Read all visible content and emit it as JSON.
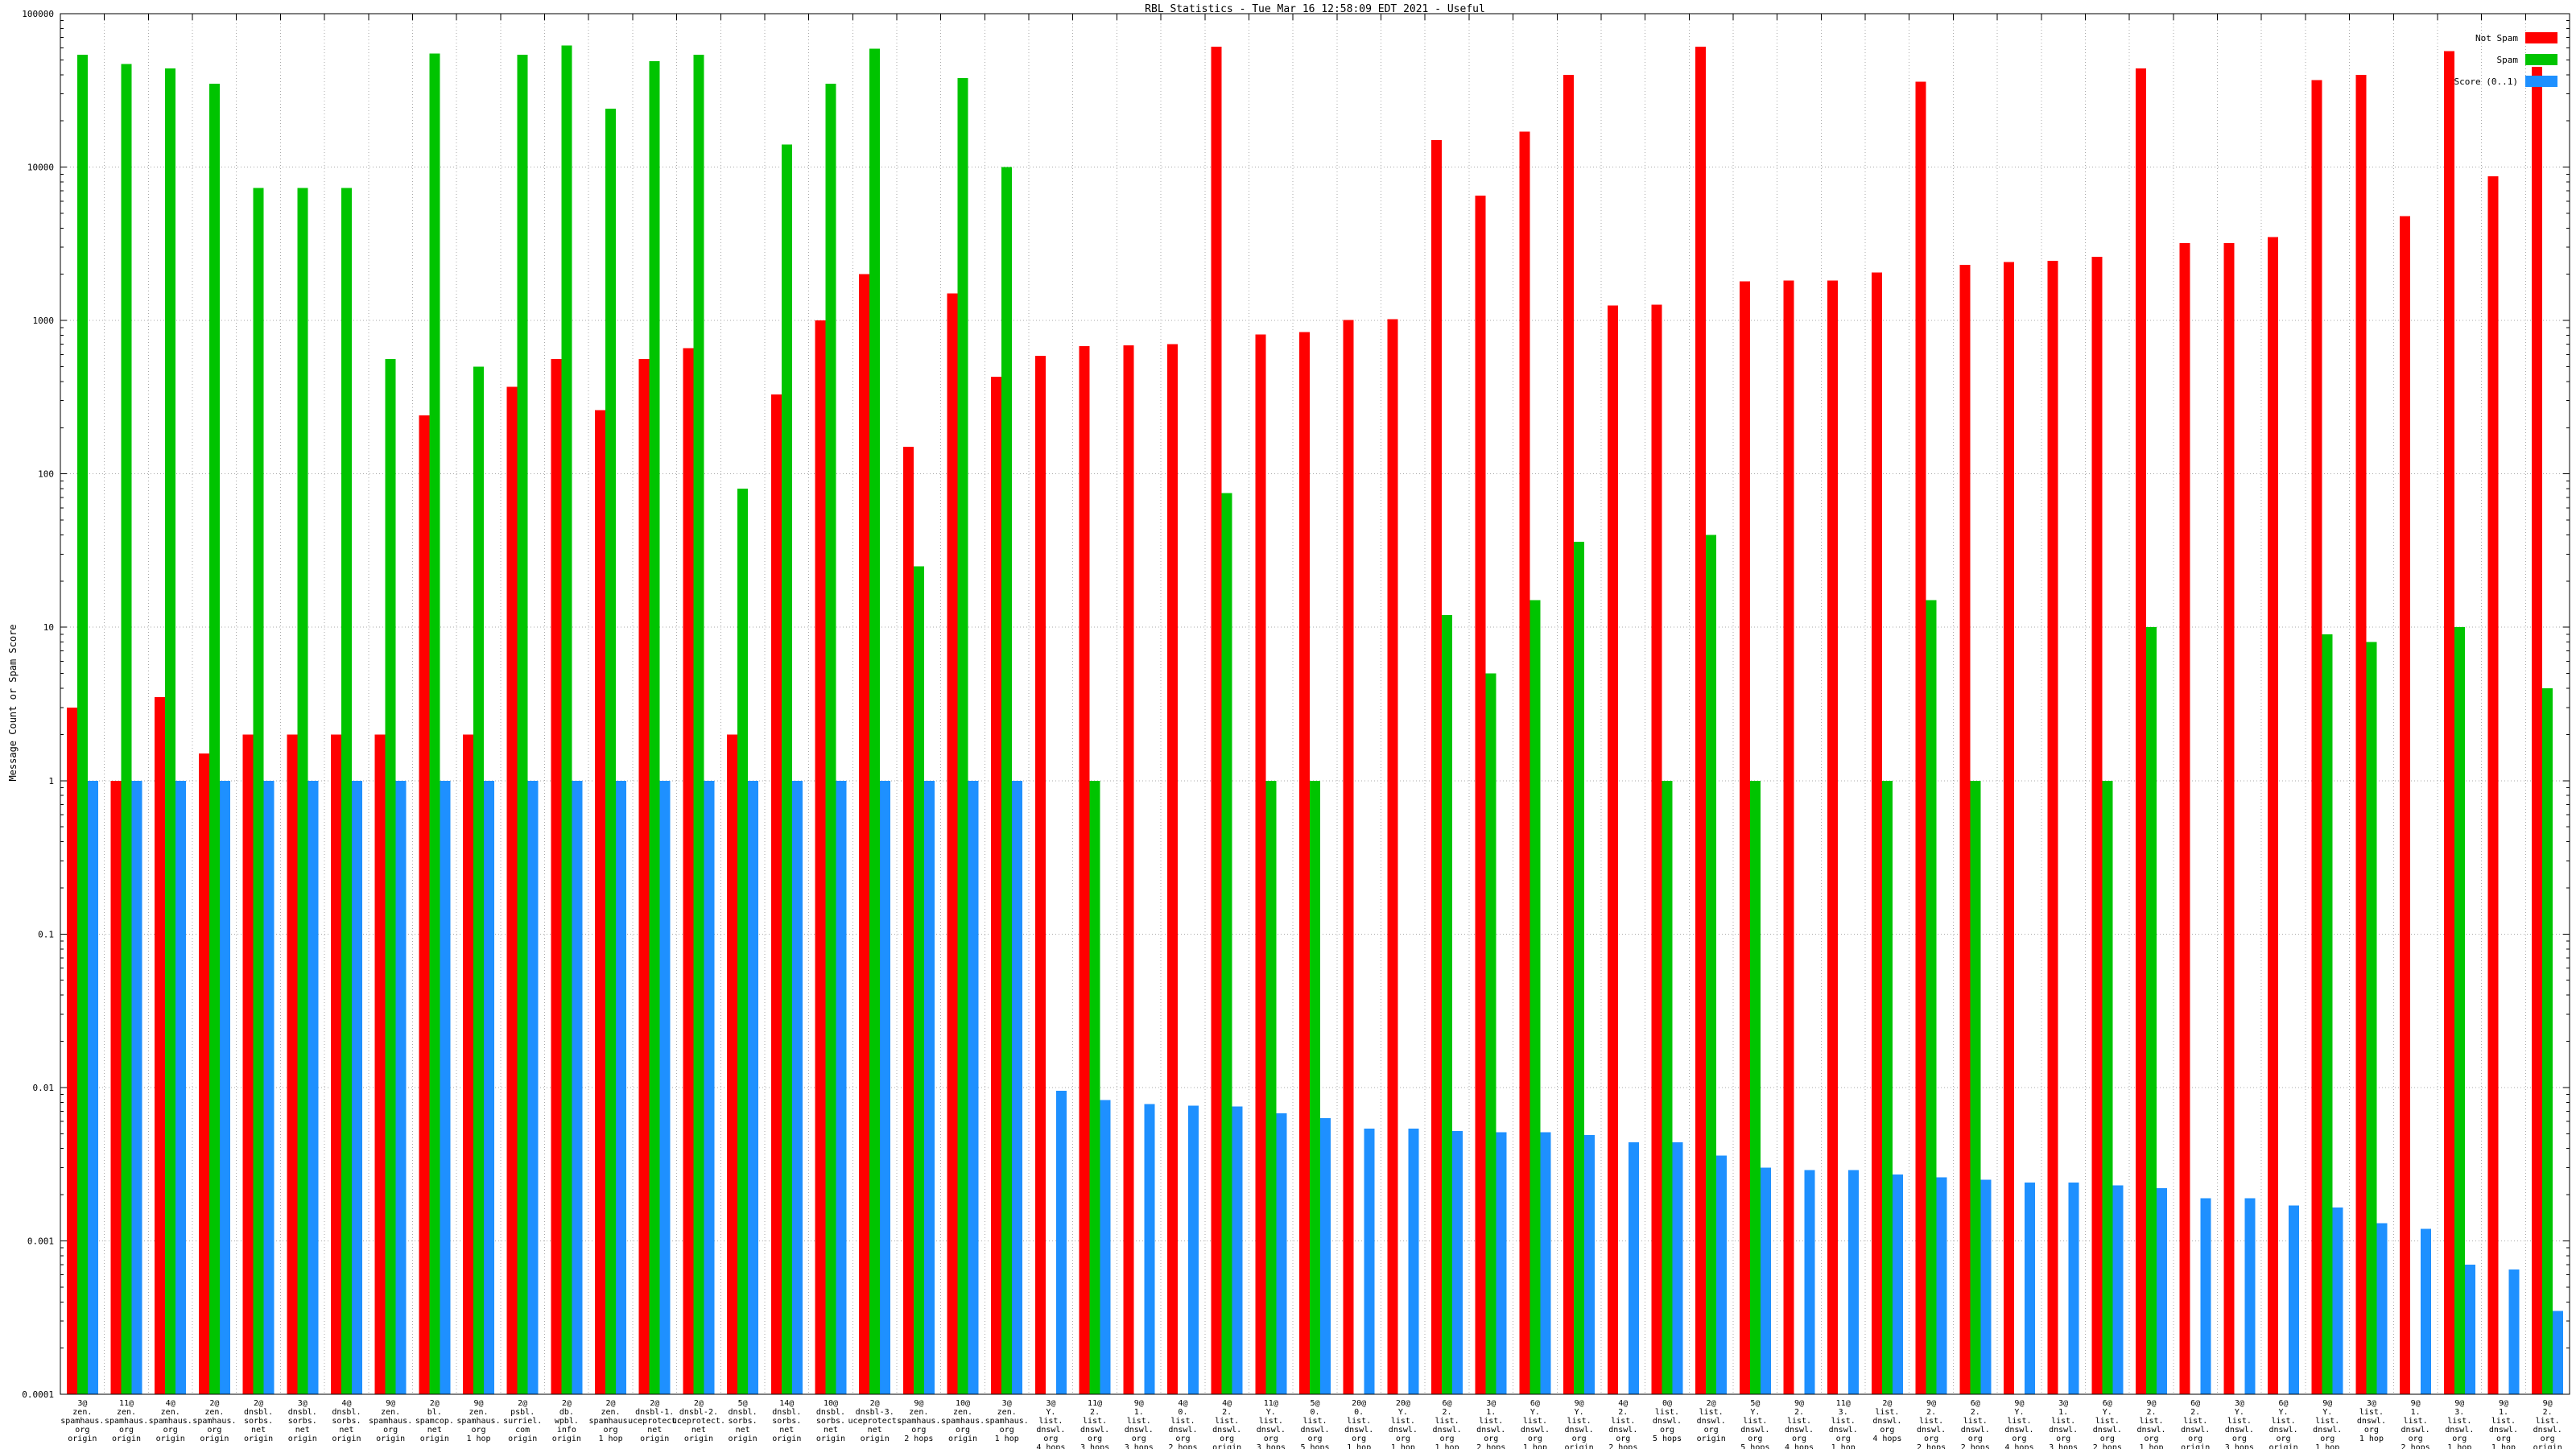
{
  "page_title": "RBL Statistics - Tue Mar 16 12:58:09 EDT 2021 - Useful",
  "chart_data": {
    "type": "bar",
    "title": "RBL Statistics - Tue Mar 16 12:58:09 EDT 2021 - Useful",
    "xlabel": "",
    "ylabel": "Message Count or Spam Score",
    "y_scale": "log",
    "ylim": [
      0.0001,
      100000
    ],
    "y_ticks": [
      "100000",
      "10000",
      "1000",
      "100",
      "10",
      "1",
      "0.1",
      "0.01",
      "0.001",
      "0.0001"
    ],
    "grid": true,
    "legend_position": "top-right",
    "colors": {
      "not_spam": "#ff0000",
      "spam": "#00c400",
      "score": "#1e90ff",
      "grid": "#a8a8a8",
      "axis": "#000000",
      "background": "#ffffff"
    },
    "categories": [
      [
        "3@",
        "zen.",
        "spamhaus.",
        "org",
        "origin"
      ],
      [
        "11@",
        "zen.",
        "spamhaus.",
        "org",
        "origin"
      ],
      [
        "4@",
        "zen.",
        "spamhaus.",
        "org",
        "origin"
      ],
      [
        "2@",
        "zen.",
        "spamhaus.",
        "org",
        "origin"
      ],
      [
        "2@",
        "dnsbl.",
        "sorbs.",
        "net",
        "origin"
      ],
      [
        "3@",
        "dnsbl.",
        "sorbs.",
        "net",
        "origin"
      ],
      [
        "4@",
        "dnsbl.",
        "sorbs.",
        "net",
        "origin"
      ],
      [
        "9@",
        "zen.",
        "spamhaus.",
        "org",
        "origin"
      ],
      [
        "2@",
        "bl.",
        "spamcop.",
        "net",
        "origin"
      ],
      [
        "9@",
        "zen.",
        "spamhaus.",
        "org",
        "1 hop"
      ],
      [
        "2@",
        "psbl.",
        "surriel.",
        "com",
        "origin"
      ],
      [
        "2@",
        "db.",
        "wpbl.",
        "info",
        "origin"
      ],
      [
        "2@",
        "zen.",
        "spamhaus.",
        "org",
        "1 hop"
      ],
      [
        "2@",
        "dnsbl-1.",
        "uceprotect.",
        "net",
        "origin"
      ],
      [
        "2@",
        "dnsbl-2.",
        "uceprotect.",
        "net",
        "origin"
      ],
      [
        "5@",
        "dnsbl.",
        "sorbs.",
        "net",
        "origin"
      ],
      [
        "14@",
        "dnsbl.",
        "sorbs.",
        "net",
        "origin"
      ],
      [
        "10@",
        "dnsbl.",
        "sorbs.",
        "net",
        "origin"
      ],
      [
        "2@",
        "dnsbl-3.",
        "uceprotect.",
        "net",
        "origin"
      ],
      [
        "9@",
        "zen.",
        "spamhaus.",
        "org",
        "2 hops"
      ],
      [
        "10@",
        "zen.",
        "spamhaus.",
        "org",
        "origin"
      ],
      [
        "3@",
        "zen.",
        "spamhaus.",
        "org",
        "1 hop"
      ],
      [
        "3@",
        "Y.",
        "list.",
        "dnswl.",
        "org",
        "4 hops"
      ],
      [
        "11@",
        "2.",
        "list.",
        "dnswl.",
        "org",
        "3 hops"
      ],
      [
        "9@",
        "1.",
        "list.",
        "dnswl.",
        "org",
        "3 hops"
      ],
      [
        "4@",
        "0.",
        "list.",
        "dnswl.",
        "org",
        "2 hops"
      ],
      [
        "4@",
        "2.",
        "list.",
        "dnswl.",
        "org",
        "origin"
      ],
      [
        "11@",
        "Y.",
        "list.",
        "dnswl.",
        "org",
        "3 hops"
      ],
      [
        "5@",
        "0.",
        "list.",
        "dnswl.",
        "org",
        "5 hops"
      ],
      [
        "20@",
        "0.",
        "list.",
        "dnswl.",
        "org",
        "1 hop"
      ],
      [
        "20@",
        "Y.",
        "list.",
        "dnswl.",
        "org",
        "1 hop"
      ],
      [
        "6@",
        "2.",
        "list.",
        "dnswl.",
        "org",
        "1 hop"
      ],
      [
        "3@",
        "1.",
        "list.",
        "dnswl.",
        "org",
        "2 hops"
      ],
      [
        "6@",
        "Y.",
        "list.",
        "dnswl.",
        "org",
        "1 hop"
      ],
      [
        "9@",
        "Y.",
        "list.",
        "dnswl.",
        "org",
        "origin"
      ],
      [
        "4@",
        "2.",
        "list.",
        "dnswl.",
        "org",
        "2 hops"
      ],
      [
        "0@",
        "list.",
        "dnswl.",
        "org",
        "5 hops"
      ],
      [
        "2@",
        "list.",
        "dnswl.",
        "org",
        "origin"
      ],
      [
        "5@",
        "Y.",
        "list.",
        "dnswl.",
        "org",
        "5 hops"
      ],
      [
        "9@",
        "2.",
        "list.",
        "dnswl.",
        "org",
        "4 hops"
      ],
      [
        "11@",
        "3.",
        "list.",
        "dnswl.",
        "org",
        "1 hop"
      ],
      [
        "2@",
        "list.",
        "dnswl.",
        "org",
        "4 hops"
      ],
      [
        "9@",
        "2.",
        "list.",
        "dnswl.",
        "org",
        "2 hops"
      ],
      [
        "6@",
        "2.",
        "list.",
        "dnswl.",
        "org",
        "2 hops"
      ],
      [
        "9@",
        "Y.",
        "list.",
        "dnswl.",
        "org",
        "4 hops"
      ],
      [
        "3@",
        "1.",
        "list.",
        "dnswl.",
        "org",
        "3 hops"
      ],
      [
        "6@",
        "Y.",
        "list.",
        "dnswl.",
        "org",
        "2 hops"
      ],
      [
        "9@",
        "2.",
        "list.",
        "dnswl.",
        "org",
        "1 hop"
      ],
      [
        "6@",
        "2.",
        "list.",
        "dnswl.",
        "org",
        "origin"
      ],
      [
        "3@",
        "Y.",
        "list.",
        "dnswl.",
        "org",
        "3 hops"
      ],
      [
        "6@",
        "Y.",
        "list.",
        "dnswl.",
        "org",
        "origin"
      ],
      [
        "9@",
        "Y.",
        "list.",
        "dnswl.",
        "org",
        "1 hop"
      ],
      [
        "3@",
        "list.",
        "dnswl.",
        "org",
        "1 hop"
      ],
      [
        "9@",
        "1.",
        "list.",
        "dnswl.",
        "org",
        "2 hops"
      ],
      [
        "9@",
        "3.",
        "list.",
        "dnswl.",
        "org",
        "1 hop"
      ],
      [
        "9@",
        "1.",
        "list.",
        "dnswl.",
        "org",
        "1 hop"
      ],
      [
        "9@",
        "2.",
        "list.",
        "dnswl.",
        "org",
        "origin"
      ]
    ],
    "series": [
      {
        "name": "Not Spam",
        "color_key": "not_spam",
        "values": [
          3,
          1,
          3.5,
          1.5,
          2,
          2,
          2,
          2,
          240,
          2,
          370,
          560,
          260,
          560,
          660,
          2,
          330,
          1000,
          2000,
          150,
          1500,
          430,
          590,
          680,
          690,
          700,
          61000,
          810,
          840,
          1010,
          1020,
          15000,
          6500,
          17000,
          40000,
          1250,
          1270,
          61000,
          1800,
          1820,
          1820,
          2050,
          36000,
          2300,
          2400,
          2450,
          2600,
          44000,
          3200,
          3200,
          3500,
          37000,
          40000,
          4800,
          57000,
          8700,
          45000
        ]
      },
      {
        "name": "Spam",
        "color_key": "spam",
        "values": [
          54000,
          47000,
          44000,
          35000,
          7300,
          7300,
          7300,
          560,
          55000,
          500,
          54000,
          62000,
          24000,
          49000,
          54000,
          80,
          14000,
          35000,
          59000,
          25,
          38000,
          10000,
          0,
          1,
          0,
          0,
          75,
          1,
          1,
          0,
          0,
          12,
          5,
          15,
          36,
          0,
          1,
          40,
          1,
          0,
          0,
          1,
          15,
          1,
          0,
          0,
          1,
          10,
          0,
          0,
          0,
          9,
          8,
          0,
          10,
          0,
          4
        ]
      },
      {
        "name": "Score (0..1)",
        "color_key": "score",
        "values": [
          1,
          1,
          1,
          1,
          1,
          1,
          1,
          1,
          1,
          1,
          1,
          1,
          1,
          1,
          1,
          1,
          1,
          1,
          1,
          1,
          1,
          1,
          0.0095,
          0.0083,
          0.0078,
          0.0076,
          0.0075,
          0.0068,
          0.0063,
          0.0054,
          0.0054,
          0.0052,
          0.0051,
          0.0051,
          0.0049,
          0.0044,
          0.0044,
          0.0036,
          0.003,
          0.0029,
          0.0029,
          0.0027,
          0.0026,
          0.0025,
          0.0024,
          0.0024,
          0.0023,
          0.0022,
          0.0019,
          0.0019,
          0.0017,
          0.00165,
          0.0013,
          0.0012,
          0.0007,
          0.00065,
          0.00035
        ]
      }
    ]
  }
}
